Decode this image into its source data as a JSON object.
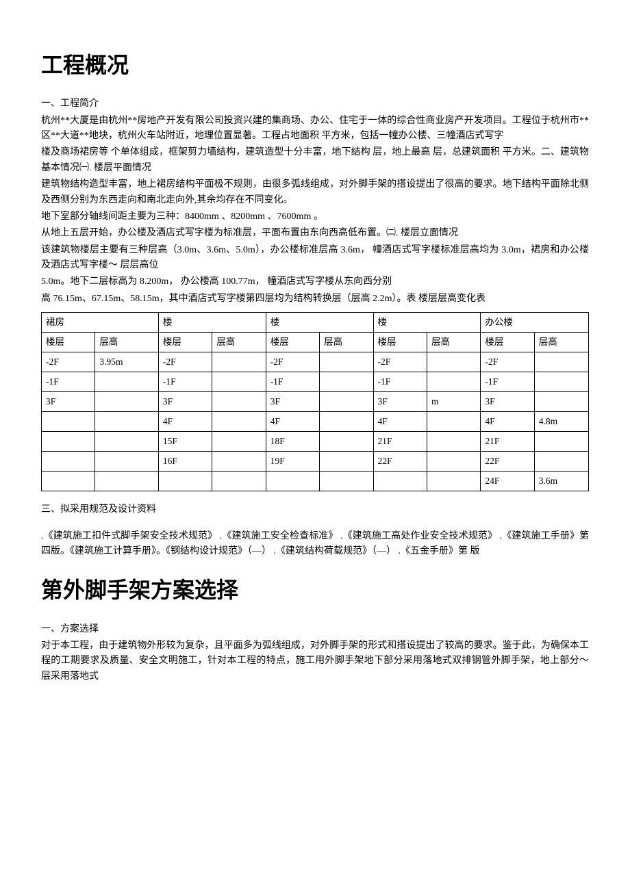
{
  "section1": {
    "title": "工程概况",
    "sub1_label": "一、工程简介",
    "para1": "杭州**大厦是由杭州**房地产开发有限公司投资兴建的集商场、办公、住宅于一体的综合性商业房产开发项目。工程位于杭州市**区**大道**地块，杭州火车站附近，地理位置显著。工程占地面积 平方米，包括一幢办公楼、三幢酒店式写字",
    "para2": "楼及商场裙房等 个单体组成，框架剪力墙结构，建筑造型十分丰富，地下结构 层，地上最高 层，总建筑面积 平方米。二、建筑物基本情况㈠. 楼层平面情况",
    "para3": "建筑物结构造型丰富，地上裙房结构平面极不规则，由很多弧线组成，对外脚手架的搭设提出了很高的要求。地下结构平面除北侧及西侧分别为东西走向和南北走向外,其余均存在不同变化。",
    "para4": "地下室部分轴线间距主要为三种：8400mm 、8200mm 、7600mm 。",
    "para5": "从地上五层开始，办公楼及酒店式写字楼为标准层，平面布置由东向西高低布置。㈡. 楼层立面情况",
    "para6": "该建筑物楼层主要有三种层高（3.0m、3.6m、5.0m），办公楼标准层高 3.6m，  幢酒店式写字楼标准层高均为 3.0m，裙房和办公楼及酒店式写字楼～ 层层高位",
    "para7": "5.0m。地下二层标高为 8.200m，  办公楼高 100.77m，  幢酒店式写字楼从东向西分别",
    "para8": "高 76.15m、67.15m、58.15m，其中酒店式写字楼第四层均为结构转换层（层高 2.2m）。表  楼层层高变化表"
  },
  "table": {
    "headers": {
      "h1": "裙房",
      "h2": "楼",
      "h3": "楼",
      "h4": "楼",
      "h5": "办公楼"
    },
    "subheaders": {
      "c1": "楼层",
      "c2": "层高",
      "c3": "楼层",
      "c4": "层高",
      "c5": "楼层",
      "c6": "层高",
      "c7": "楼层",
      "c8": "层高",
      "c9": "楼层",
      "c10": "层高"
    },
    "rows": [
      {
        "c1": "-2F",
        "c2": "3.95m",
        "c3": "-2F",
        "c4": "",
        "c5": "-2F",
        "c6": "",
        "c7": "-2F",
        "c8": "",
        "c9": "-2F",
        "c10": ""
      },
      {
        "c1": "-1F",
        "c2": "",
        "c3": "-1F",
        "c4": "",
        "c5": "-1F",
        "c6": "",
        "c7": "-1F",
        "c8": "",
        "c9": "-1F",
        "c10": ""
      },
      {
        "c1": "3F",
        "c2": "",
        "c3": "3F",
        "c4": "",
        "c5": "3F",
        "c6": "",
        "c7": "3F",
        "c8": "m",
        "c9": "3F",
        "c10": ""
      },
      {
        "c1": "",
        "c2": "",
        "c3": "4F",
        "c4": "",
        "c5": "4F",
        "c6": "",
        "c7": "4F",
        "c8": "",
        "c9": "4F",
        "c10": "4.8m"
      },
      {
        "c1": "",
        "c2": "",
        "c3": "15F",
        "c4": "",
        "c5": "18F",
        "c6": "",
        "c7": "21F",
        "c8": "",
        "c9": "21F",
        "c10": ""
      },
      {
        "c1": "",
        "c2": "",
        "c3": "16F",
        "c4": "",
        "c5": "19F",
        "c6": "",
        "c7": "22F",
        "c8": "",
        "c9": "22F",
        "c10": ""
      },
      {
        "c1": "",
        "c2": "",
        "c3": "",
        "c4": "",
        "c5": "",
        "c6": "",
        "c7": "",
        "c8": "",
        "c9": "24F",
        "c10": "3.6m"
      }
    ]
  },
  "section1b": {
    "sub3_label": "三、拟采用规范及设计资料",
    "para9": ".《建筑施工扣件式脚手架安全技术规范》   .《建筑施工安全检查标准》   .《建筑施工高处作业安全技术规范》   .《建筑施工手册》第四版。《建筑施工计算手册》。《钢结构设计规范》（—）  .《建筑结构荷载规范》（—）  .《五金手册》第 版"
  },
  "section2": {
    "title": "第外脚手架方案选择",
    "sub1_label": "一、方案选择",
    "para1": "对于本工程，由于建筑物外形较为复杂，且平面多为弧线组成，对外脚手架的形式和搭设提出了较高的要求。鉴于此，为确保本工程的工期要求及质量、安全文明施工，针对本工程的特点，施工用外脚手架地下部分采用落地式双排钢管外脚手架，地上部分～ 层采用落地式"
  }
}
